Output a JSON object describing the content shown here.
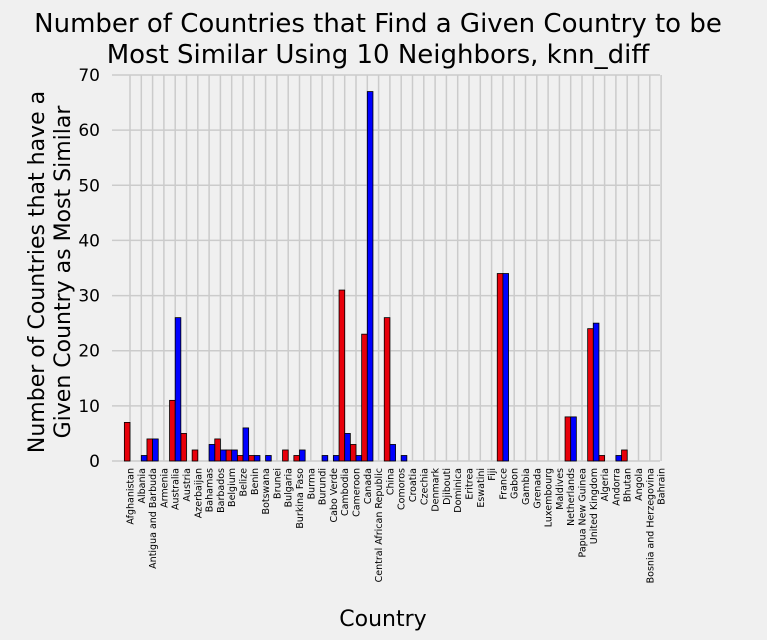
{
  "chart_data": {
    "type": "bar",
    "title_lines": [
      "Number of Countries that Find a Given Country to be",
      "Most Similar Using 10 Neighbors, knn_diff"
    ],
    "xlabel": "Country",
    "ylabel_lines": [
      "Number of Countries that have a",
      "Given Country as Most Similar"
    ],
    "ylim": [
      0,
      70
    ],
    "yticks": [
      0,
      10,
      20,
      30,
      40,
      50,
      60,
      70
    ],
    "grid": true,
    "legend": "none",
    "categories": [
      "Afghanistan",
      "Albania",
      "Antigua and Barbuda",
      "Armenia",
      "Australia",
      "Austria",
      "Azerbaijan",
      "Bahamas",
      "Barbados",
      "Belgium",
      "Belize",
      "Benin",
      "Botswana",
      "Brunei",
      "Bulgaria",
      "Burkina Faso",
      "Burma",
      "Burundi",
      "Cabo Verde",
      "Cambodia",
      "Cameroon",
      "Canada",
      "Central African Republic",
      "China",
      "Comoros",
      "Croatia",
      "Czechia",
      "Denmark",
      "Djibouti",
      "Dominica",
      "Eritrea",
      "Eswatini",
      "Fiji",
      "France",
      "Gabon",
      "Gambia",
      "Grenada",
      "Luxembourg",
      "Maldives",
      "Netherlands",
      "Papua New Guinea",
      "United Kingdom",
      "Algeria",
      "Andorra",
      "Bhutan",
      "Angola",
      "Bosnia and Herzegovina",
      "Bahrain"
    ],
    "series": [
      {
        "color": "#e8000b",
        "values": [
          7,
          0,
          4,
          0,
          11,
          5,
          2,
          0,
          4,
          2,
          1,
          1,
          0,
          0,
          2,
          1,
          0,
          0,
          0,
          31,
          3,
          23,
          0,
          26,
          0,
          0,
          0,
          0,
          0,
          0,
          0,
          0,
          0,
          34,
          0,
          0,
          0,
          0,
          0,
          8,
          0,
          24,
          1,
          0,
          2,
          0,
          0,
          0
        ]
      },
      {
        "color": "#0000ff",
        "values": [
          0,
          1,
          4,
          0,
          26,
          0,
          0,
          3,
          2,
          2,
          6,
          1,
          1,
          0,
          0,
          2,
          0,
          1,
          1,
          5,
          1,
          67,
          0,
          3,
          1,
          0,
          0,
          0,
          0,
          0,
          0,
          0,
          0,
          34,
          0,
          0,
          0,
          0,
          0,
          8,
          0,
          25,
          0,
          1,
          0,
          0,
          0,
          0
        ]
      }
    ]
  }
}
